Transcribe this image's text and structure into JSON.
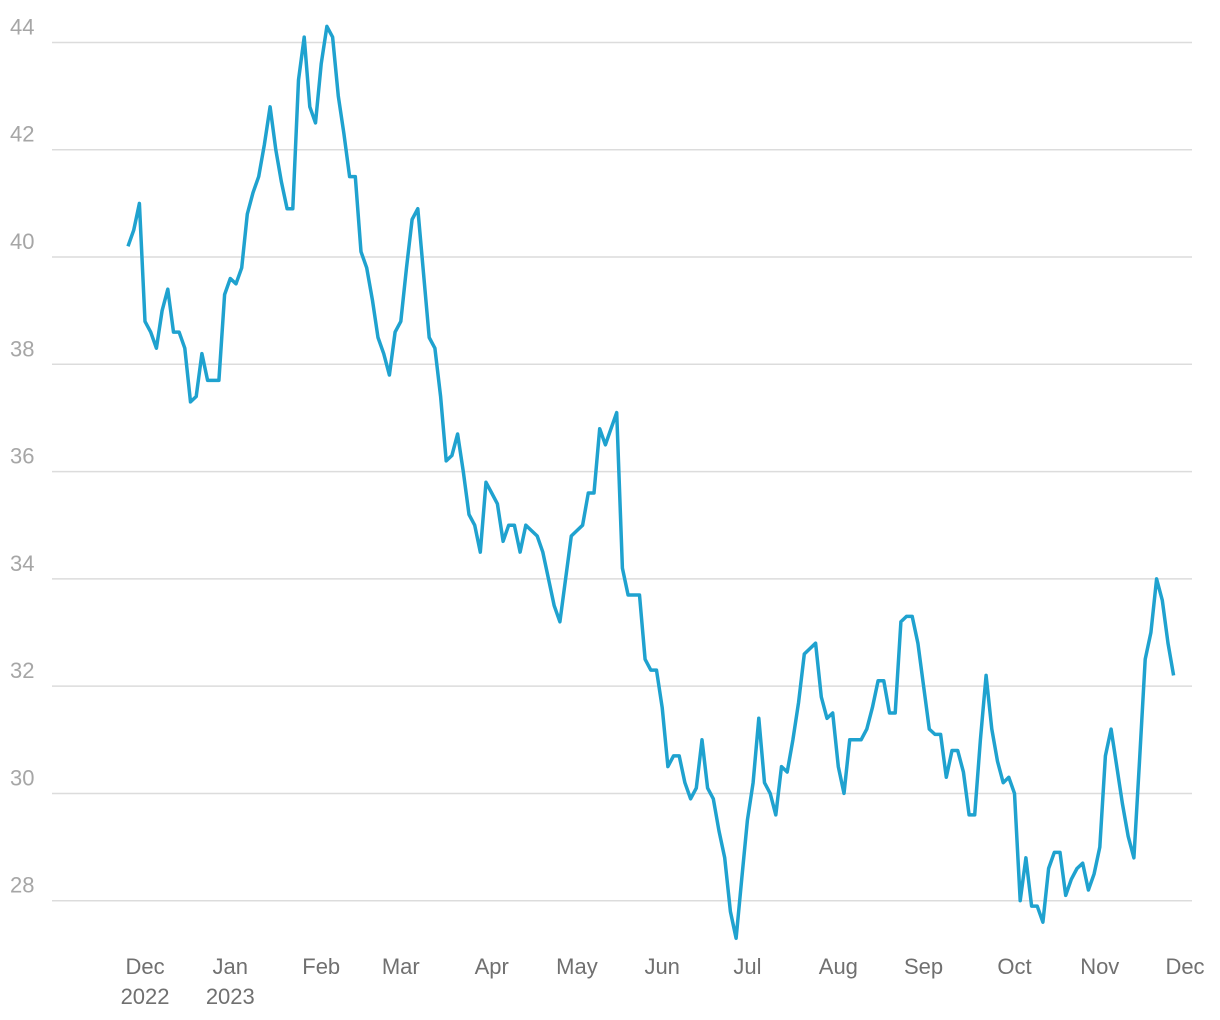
{
  "chart_data": {
    "type": "line",
    "categories": [
      null,
      null,
      null,
      "Dec 2022",
      null,
      null,
      null,
      null,
      null,
      null,
      null,
      null,
      null,
      null,
      null,
      null,
      null,
      null,
      "Jan 2023",
      null,
      null,
      null,
      null,
      null,
      null,
      null,
      null,
      null,
      null,
      null,
      null,
      null,
      null,
      null,
      "Feb",
      null,
      null,
      null,
      null,
      null,
      null,
      null,
      null,
      null,
      null,
      null,
      null,
      null,
      "Mar",
      null,
      null,
      null,
      null,
      null,
      null,
      null,
      null,
      null,
      null,
      null,
      null,
      null,
      null,
      null,
      "Apr",
      null,
      null,
      null,
      null,
      null,
      null,
      null,
      null,
      null,
      null,
      null,
      null,
      null,
      null,
      "May",
      null,
      null,
      null,
      null,
      null,
      null,
      null,
      null,
      null,
      null,
      null,
      null,
      null,
      null,
      "Jun",
      null,
      null,
      null,
      null,
      null,
      null,
      null,
      null,
      null,
      null,
      null,
      null,
      null,
      null,
      "Jul",
      null,
      null,
      null,
      null,
      null,
      null,
      null,
      null,
      null,
      null,
      null,
      null,
      null,
      null,
      null,
      "Aug",
      null,
      null,
      null,
      null,
      null,
      null,
      null,
      null,
      null,
      null,
      null,
      null,
      null,
      null,
      "Sep",
      null,
      null,
      null,
      null,
      null,
      null,
      null,
      null,
      null,
      null,
      null,
      null,
      null,
      null,
      null,
      "Oct",
      null,
      null,
      null,
      null,
      null,
      null,
      null,
      null,
      null,
      null,
      null,
      null,
      null,
      null,
      "Nov",
      null,
      null,
      null,
      null,
      null,
      null,
      null,
      null,
      null,
      null,
      null,
      null,
      null,
      null,
      "Dec"
    ],
    "values": [
      40.2,
      40.5,
      41.0,
      38.8,
      38.6,
      38.3,
      39.0,
      39.4,
      38.6,
      38.6,
      38.3,
      37.3,
      37.4,
      38.2,
      37.7,
      37.7,
      37.7,
      39.3,
      39.6,
      39.5,
      39.8,
      40.8,
      41.2,
      41.5,
      42.1,
      42.8,
      42.0,
      41.4,
      40.9,
      40.9,
      43.3,
      44.1,
      42.8,
      42.5,
      43.6,
      44.3,
      44.1,
      43.0,
      42.3,
      41.5,
      41.5,
      40.1,
      39.8,
      39.2,
      38.5,
      38.2,
      37.8,
      38.6,
      38.8,
      39.8,
      40.7,
      40.9,
      39.7,
      38.5,
      38.3,
      37.4,
      36.2,
      36.3,
      36.7,
      36.0,
      35.2,
      35.0,
      34.5,
      35.8,
      35.6,
      35.4,
      34.7,
      35.0,
      35.0,
      34.5,
      35.0,
      34.9,
      34.8,
      34.5,
      34.0,
      33.5,
      33.2,
      34.0,
      34.8,
      34.9,
      35.0,
      35.6,
      35.6,
      36.8,
      36.5,
      36.8,
      37.1,
      34.2,
      33.7,
      33.7,
      33.7,
      32.5,
      32.3,
      32.3,
      31.6,
      30.5,
      30.7,
      30.7,
      30.2,
      29.9,
      30.1,
      31.0,
      30.1,
      29.9,
      29.3,
      28.8,
      27.8,
      27.3,
      28.4,
      29.5,
      30.2,
      31.4,
      30.2,
      30.0,
      29.6,
      30.5,
      30.4,
      31.0,
      31.7,
      32.6,
      32.7,
      32.8,
      31.8,
      31.4,
      31.5,
      30.5,
      30.0,
      31.0,
      31.0,
      31.0,
      31.2,
      31.6,
      32.1,
      32.1,
      31.5,
      31.5,
      33.2,
      33.3,
      33.3,
      32.8,
      32.0,
      31.2,
      31.1,
      31.1,
      30.3,
      30.8,
      30.8,
      30.4,
      29.6,
      29.6,
      31.0,
      32.2,
      31.2,
      30.6,
      30.2,
      30.3,
      30.0,
      28.0,
      28.8,
      27.9,
      27.9,
      27.6,
      28.6,
      28.9,
      28.9,
      28.1,
      28.4,
      28.6,
      28.7,
      28.2,
      28.5,
      29.0,
      30.7,
      31.2,
      30.5,
      29.8,
      29.2,
      28.8,
      30.6,
      32.5,
      33.0,
      34.0,
      33.6,
      32.8,
      32.2,
      null,
      null
    ],
    "color": "#1fa2cf",
    "ylim": [
      27.1,
      44.4
    ],
    "yticks": [
      28,
      30,
      32,
      34,
      36,
      38,
      40,
      42,
      44
    ],
    "grid": true
  }
}
